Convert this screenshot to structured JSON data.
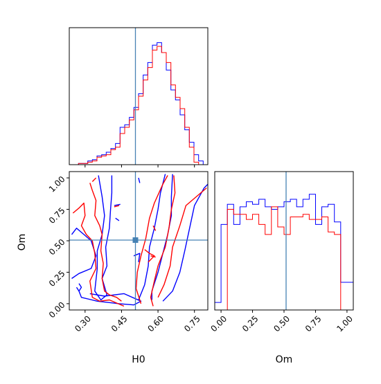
{
  "chart_data": {
    "type": "corner",
    "parameters": [
      "H0",
      "Om"
    ],
    "truth": {
      "H0": 0.5,
      "Om": 0.5
    },
    "colors": {
      "series_a": "#0000ff",
      "series_b": "#ff0000",
      "truth": "#4682b4",
      "frame": "#000000"
    },
    "grid": false,
    "legend": "none",
    "panels": [
      {
        "id": "H0-marginal",
        "type": "histogram",
        "x_param": "H0",
        "xlim": [
          0.235,
          0.805
        ],
        "ylim": [
          0,
          1.1
        ],
        "show_x_ticklabels": false,
        "bin_edges": [
          0.235,
          0.254,
          0.273,
          0.292,
          0.311,
          0.33,
          0.349,
          0.368,
          0.387,
          0.406,
          0.425,
          0.444,
          0.463,
          0.482,
          0.501,
          0.52,
          0.539,
          0.558,
          0.577,
          0.596,
          0.615,
          0.634,
          0.653,
          0.672,
          0.691,
          0.71,
          0.729,
          0.748,
          0.767,
          0.786,
          0.805
        ],
        "series": [
          {
            "color_key": "series_a",
            "values": [
              0,
              0,
              0.01,
              0.01,
              0.03,
              0.04,
              0.07,
              0.08,
              0.1,
              0.13,
              0.17,
              0.3,
              0.32,
              0.38,
              0.46,
              0.57,
              0.72,
              0.82,
              0.96,
              0.98,
              0.9,
              0.76,
              0.6,
              0.52,
              0.4,
              0.28,
              0.18,
              0.08,
              0.03,
              0
            ]
          },
          {
            "color_key": "series_b",
            "values": [
              0,
              0,
              0.01,
              0.01,
              0.02,
              0.03,
              0.06,
              0.07,
              0.08,
              0.12,
              0.14,
              0.25,
              0.3,
              0.36,
              0.44,
              0.55,
              0.68,
              0.78,
              0.92,
              0.95,
              0.9,
              0.82,
              0.64,
              0.54,
              0.45,
              0.3,
              0.14,
              0.02,
              0,
              0
            ]
          }
        ]
      },
      {
        "id": "Om-marginal",
        "type": "histogram",
        "x_param": "Om",
        "xlim": [
          -0.05,
          1.05
        ],
        "ylim": [
          0,
          1.1
        ],
        "x_ticks": [
          0.0,
          0.25,
          0.5,
          0.75,
          1.0
        ],
        "x_tick_labels": [
          "0.00",
          "0.25",
          "0.50",
          "0.75",
          "1.00"
        ],
        "xlabel": "Om",
        "bin_edges": [
          -0.05,
          0,
          0.05,
          0.1,
          0.15,
          0.2,
          0.25,
          0.3,
          0.35,
          0.4,
          0.45,
          0.5,
          0.55,
          0.6,
          0.65,
          0.7,
          0.75,
          0.8,
          0.85,
          0.9,
          0.95,
          1.0,
          1.05
        ],
        "series": [
          {
            "color_key": "series_a",
            "values": [
              0.06,
              0.68,
              0.84,
              0.68,
              0.82,
              0.86,
              0.84,
              0.88,
              0.82,
              0.8,
              0.82,
              0.86,
              0.88,
              0.82,
              0.88,
              0.92,
              0.68,
              0.82,
              0.84,
              0.7,
              0.22,
              0.22
            ]
          },
          {
            "color_key": "series_b",
            "values": [
              0,
              0,
              0.8,
              0.76,
              0.76,
              0.72,
              0.76,
              0.68,
              0.6,
              0.82,
              0.66,
              0.6,
              0.74,
              0.74,
              0.76,
              0.72,
              0.72,
              0.74,
              0.62,
              0.6,
              0,
              0
            ]
          }
        ]
      },
      {
        "id": "H0-Om-joint",
        "type": "contour",
        "x_param": "H0",
        "y_param": "Om",
        "xlim": [
          0.235,
          0.805
        ],
        "ylim": [
          -0.05,
          1.05
        ],
        "x_ticks": [
          0.3,
          0.45,
          0.6,
          0.75
        ],
        "x_tick_labels": [
          "0.30",
          "0.45",
          "0.60",
          "0.75"
        ],
        "y_ticks": [
          0.0,
          0.25,
          0.5,
          0.75,
          1.0
        ],
        "y_tick_labels": [
          "0.00",
          "0.25",
          "0.50",
          "0.75",
          "1.00"
        ],
        "xlabel": "H0",
        "ylabel": "Om",
        "series": [
          {
            "color_key": "series_a",
            "contours": [
              [
                [
                  0.245,
                  0.55
                ],
                [
                  0.265,
                  0.6
                ],
                [
                  0.295,
                  0.55
                ],
                [
                  0.325,
                  0.5
                ],
                [
                  0.345,
                  0.38
                ],
                [
                  0.325,
                  0.28
                ],
                [
                  0.275,
                  0.24
                ],
                [
                  0.245,
                  0.2
                ]
              ],
              [
                [
                  0.275,
                  0.1
                ],
                [
                  0.285,
                  0.05
                ],
                [
                  0.35,
                  0.02
                ],
                [
                  0.44,
                  0
                ],
                [
                  0.5,
                  -0.01
                ],
                [
                  0.53,
                  0.02
                ],
                [
                  0.46,
                  0.08
                ],
                [
                  0.38,
                  0.06
                ],
                [
                  0.32,
                  0.08
                ]
              ],
              [
                [
                  0.355,
                  1.02
                ],
                [
                  0.37,
                  0.85
                ],
                [
                  0.38,
                  0.7
                ],
                [
                  0.37,
                  0.55
                ],
                [
                  0.35,
                  0.42
                ],
                [
                  0.35,
                  0.28
                ],
                [
                  0.34,
                  0.1
                ],
                [
                  0.365,
                  0.03
                ],
                [
                  0.39,
                  0.07
                ],
                [
                  0.37,
                  0.2
                ],
                [
                  0.39,
                  0.3
                ],
                [
                  0.385,
                  0.45
                ],
                [
                  0.4,
                  0.6
                ],
                [
                  0.405,
                  0.75
                ],
                [
                  0.41,
                  0.88
                ],
                [
                  0.41,
                  1.02
                ]
              ],
              [
                [
                  0.52,
                  0.03
                ],
                [
                  0.545,
                  0.15
                ],
                [
                  0.56,
                  0.3
                ],
                [
                  0.565,
                  0.45
                ],
                [
                  0.585,
                  0.6
                ],
                [
                  0.6,
                  0.75
                ],
                [
                  0.61,
                  0.88
                ],
                [
                  0.63,
                  1.03
                ]
              ],
              [
                [
                  0.66,
                  1.03
                ],
                [
                  0.655,
                  0.85
                ],
                [
                  0.655,
                  0.7
                ],
                [
                  0.64,
                  0.55
                ],
                [
                  0.62,
                  0.4
                ],
                [
                  0.6,
                  0.25
                ],
                [
                  0.575,
                  0.1
                ],
                [
                  0.575,
                  0.03
                ]
              ],
              [
                [
                  0.62,
                  0.02
                ],
                [
                  0.66,
                  0.1
                ],
                [
                  0.69,
                  0.25
                ],
                [
                  0.71,
                  0.42
                ],
                [
                  0.73,
                  0.6
                ],
                [
                  0.75,
                  0.78
                ],
                [
                  0.79,
                  0.92
                ],
                [
                  0.805,
                  0.95
                ]
              ],
              [
                [
                  0.5,
                  0.38
                ],
                [
                  0.525,
                  0.4
                ],
                [
                  0.52,
                  0.33
                ]
              ],
              [
                [
                  0.52,
                  1.0
                ],
                [
                  0.525,
                  0.96
                ]
              ],
              [
                [
                  0.42,
                  0.78
                ],
                [
                  0.445,
                  0.79
                ]
              ],
              [
                [
                  0.425,
                  0.68
                ],
                [
                  0.44,
                  0.66
                ]
              ],
              [
                [
                  0.265,
                  0.13
                ],
                [
                  0.275,
                  0.1
                ],
                [
                  0.285,
                  0.13
                ],
                [
                  0.275,
                  0.16
                ]
              ]
            ]
          },
          {
            "color_key": "series_b",
            "contours": [
              [
                [
                  0.25,
                  0.72
                ],
                [
                  0.275,
                  0.76
                ],
                [
                  0.295,
                  0.8
                ],
                [
                  0.3,
                  0.7
                ],
                [
                  0.285,
                  0.62
                ],
                [
                  0.305,
                  0.55
                ],
                [
                  0.33,
                  0.5
                ],
                [
                  0.34,
                  0.4
                ],
                [
                  0.345,
                  0.28
                ],
                [
                  0.32,
                  0.18
                ],
                [
                  0.33,
                  0.05
                ],
                [
                  0.36,
                  0.02
                ],
                [
                  0.4,
                  0.03
                ],
                [
                  0.46,
                  -0.02
                ]
              ],
              [
                [
                  0.32,
                  0.96
                ],
                [
                  0.33,
                  0.9
                ],
                [
                  0.345,
                  0.82
                ],
                [
                  0.34,
                  0.7
                ],
                [
                  0.36,
                  0.62
                ],
                [
                  0.37,
                  0.55
                ],
                [
                  0.365,
                  0.42
                ],
                [
                  0.375,
                  0.32
                ],
                [
                  0.37,
                  0.2
                ],
                [
                  0.38,
                  0.1
                ],
                [
                  0.4,
                  0.07
                ],
                [
                  0.43,
                  0.05
                ],
                [
                  0.45,
                  0.02
                ]
              ],
              [
                [
                  0.53,
                  0.0
                ],
                [
                  0.51,
                  0.12
                ],
                [
                  0.515,
                  0.25
                ],
                [
                  0.53,
                  0.38
                ],
                [
                  0.55,
                  0.52
                ],
                [
                  0.565,
                  0.68
                ],
                [
                  0.585,
                  0.8
                ],
                [
                  0.62,
                  0.95
                ],
                [
                  0.64,
                  1.02
                ]
              ],
              [
                [
                  0.665,
                  1.02
                ],
                [
                  0.67,
                  0.88
                ],
                [
                  0.655,
                  0.75
                ],
                [
                  0.645,
                  0.6
                ],
                [
                  0.63,
                  0.45
                ],
                [
                  0.6,
                  0.3
                ],
                [
                  0.585,
                  0.18
                ],
                [
                  0.57,
                  0.05
                ],
                [
                  0.58,
                  -0.02
                ]
              ],
              [
                [
                  0.6,
                  0.05
                ],
                [
                  0.625,
                  0.15
                ],
                [
                  0.65,
                  0.3
                ],
                [
                  0.66,
                  0.45
                ],
                [
                  0.69,
                  0.62
                ],
                [
                  0.715,
                  0.78
                ],
                [
                  0.8,
                  0.92
                ]
              ],
              [
                [
                  0.545,
                  0.43
                ],
                [
                  0.565,
                  0.4
                ],
                [
                  0.585,
                  0.38
                ],
                [
                  0.56,
                  0.33
                ]
              ],
              [
                [
                  0.58,
                  0.62
                ],
                [
                  0.59,
                  0.58
                ]
              ],
              [
                [
                  0.57,
                  0.38
                ],
                [
                  0.59,
                  0.37
                ]
              ],
              [
                [
                  0.42,
                  0.77
                ],
                [
                  0.44,
                  0.78
                ]
              ],
              [
                [
                  0.33,
                  0.97
                ],
                [
                  0.345,
                  1.0
                ]
              ]
            ]
          }
        ]
      }
    ]
  }
}
